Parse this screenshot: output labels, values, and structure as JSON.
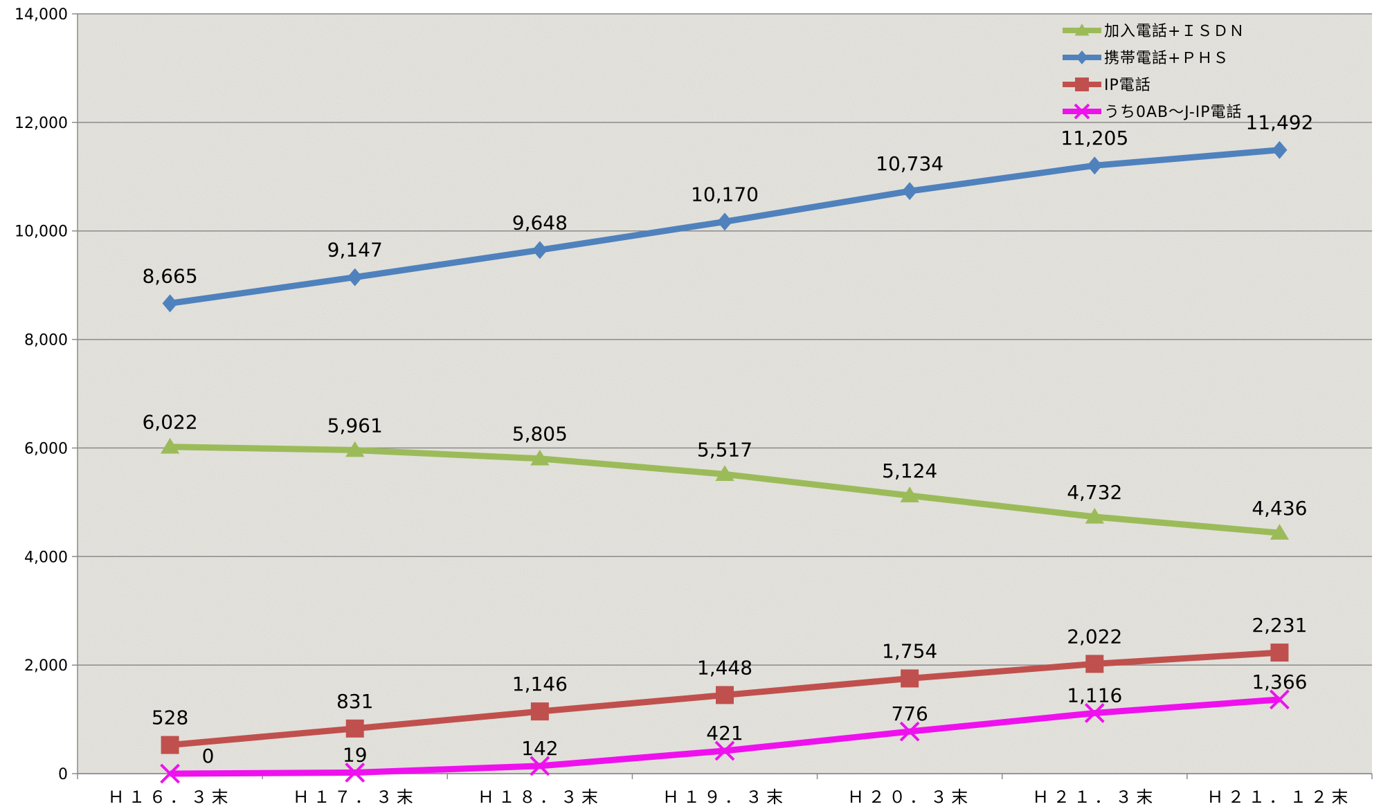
{
  "chart_data": {
    "type": "line",
    "categories": [
      "Ｈ１６．３末",
      "Ｈ１７．３末",
      "Ｈ１８．３末",
      "Ｈ１９．３末",
      "Ｈ２０．３末",
      "Ｈ２１．３末",
      "Ｈ２１．１２末"
    ],
    "ylim": [
      0,
      14000
    ],
    "yticks": [
      0,
      2000,
      4000,
      6000,
      8000,
      10000,
      12000,
      14000
    ],
    "ytick_labels": [
      "0",
      "2,000",
      "4,000",
      "6,000",
      "8,000",
      "10,000",
      "12,000",
      "14,000"
    ],
    "grid": true,
    "legend_position": "top-right",
    "series": [
      {
        "name": "加入電話+ＩＳＤＮ",
        "color": "#9BBB59",
        "marker": "triangle",
        "values": [
          6022,
          5961,
          5805,
          5517,
          5124,
          4732,
          4436
        ],
        "labels": [
          "6,022",
          "5,961",
          "5,805",
          "5,517",
          "5,124",
          "4,732",
          "4,436"
        ]
      },
      {
        "name": "携帯電話+ＰＨＳ",
        "color": "#4F81BD",
        "marker": "diamond",
        "values": [
          8665,
          9147,
          9648,
          10170,
          10734,
          11205,
          11492
        ],
        "labels": [
          "8,665",
          "9,147",
          "9,648",
          "10,170",
          "10,734",
          "11,205",
          "11,492"
        ]
      },
      {
        "name": "IP電話",
        "color": "#C0504D",
        "marker": "square",
        "values": [
          528,
          831,
          1146,
          1448,
          1754,
          2022,
          2231
        ],
        "labels": [
          "528",
          "831",
          "1,146",
          "1,448",
          "1,754",
          "2,022",
          "2,231"
        ]
      },
      {
        "name": "うち0AB～J-IP電話",
        "color": "#EE11EE",
        "marker": "x",
        "values": [
          0,
          19,
          142,
          421,
          776,
          1116,
          1366
        ],
        "labels": [
          "0",
          "19",
          "142",
          "421",
          "776",
          "1,116",
          "1,366"
        ]
      }
    ]
  }
}
